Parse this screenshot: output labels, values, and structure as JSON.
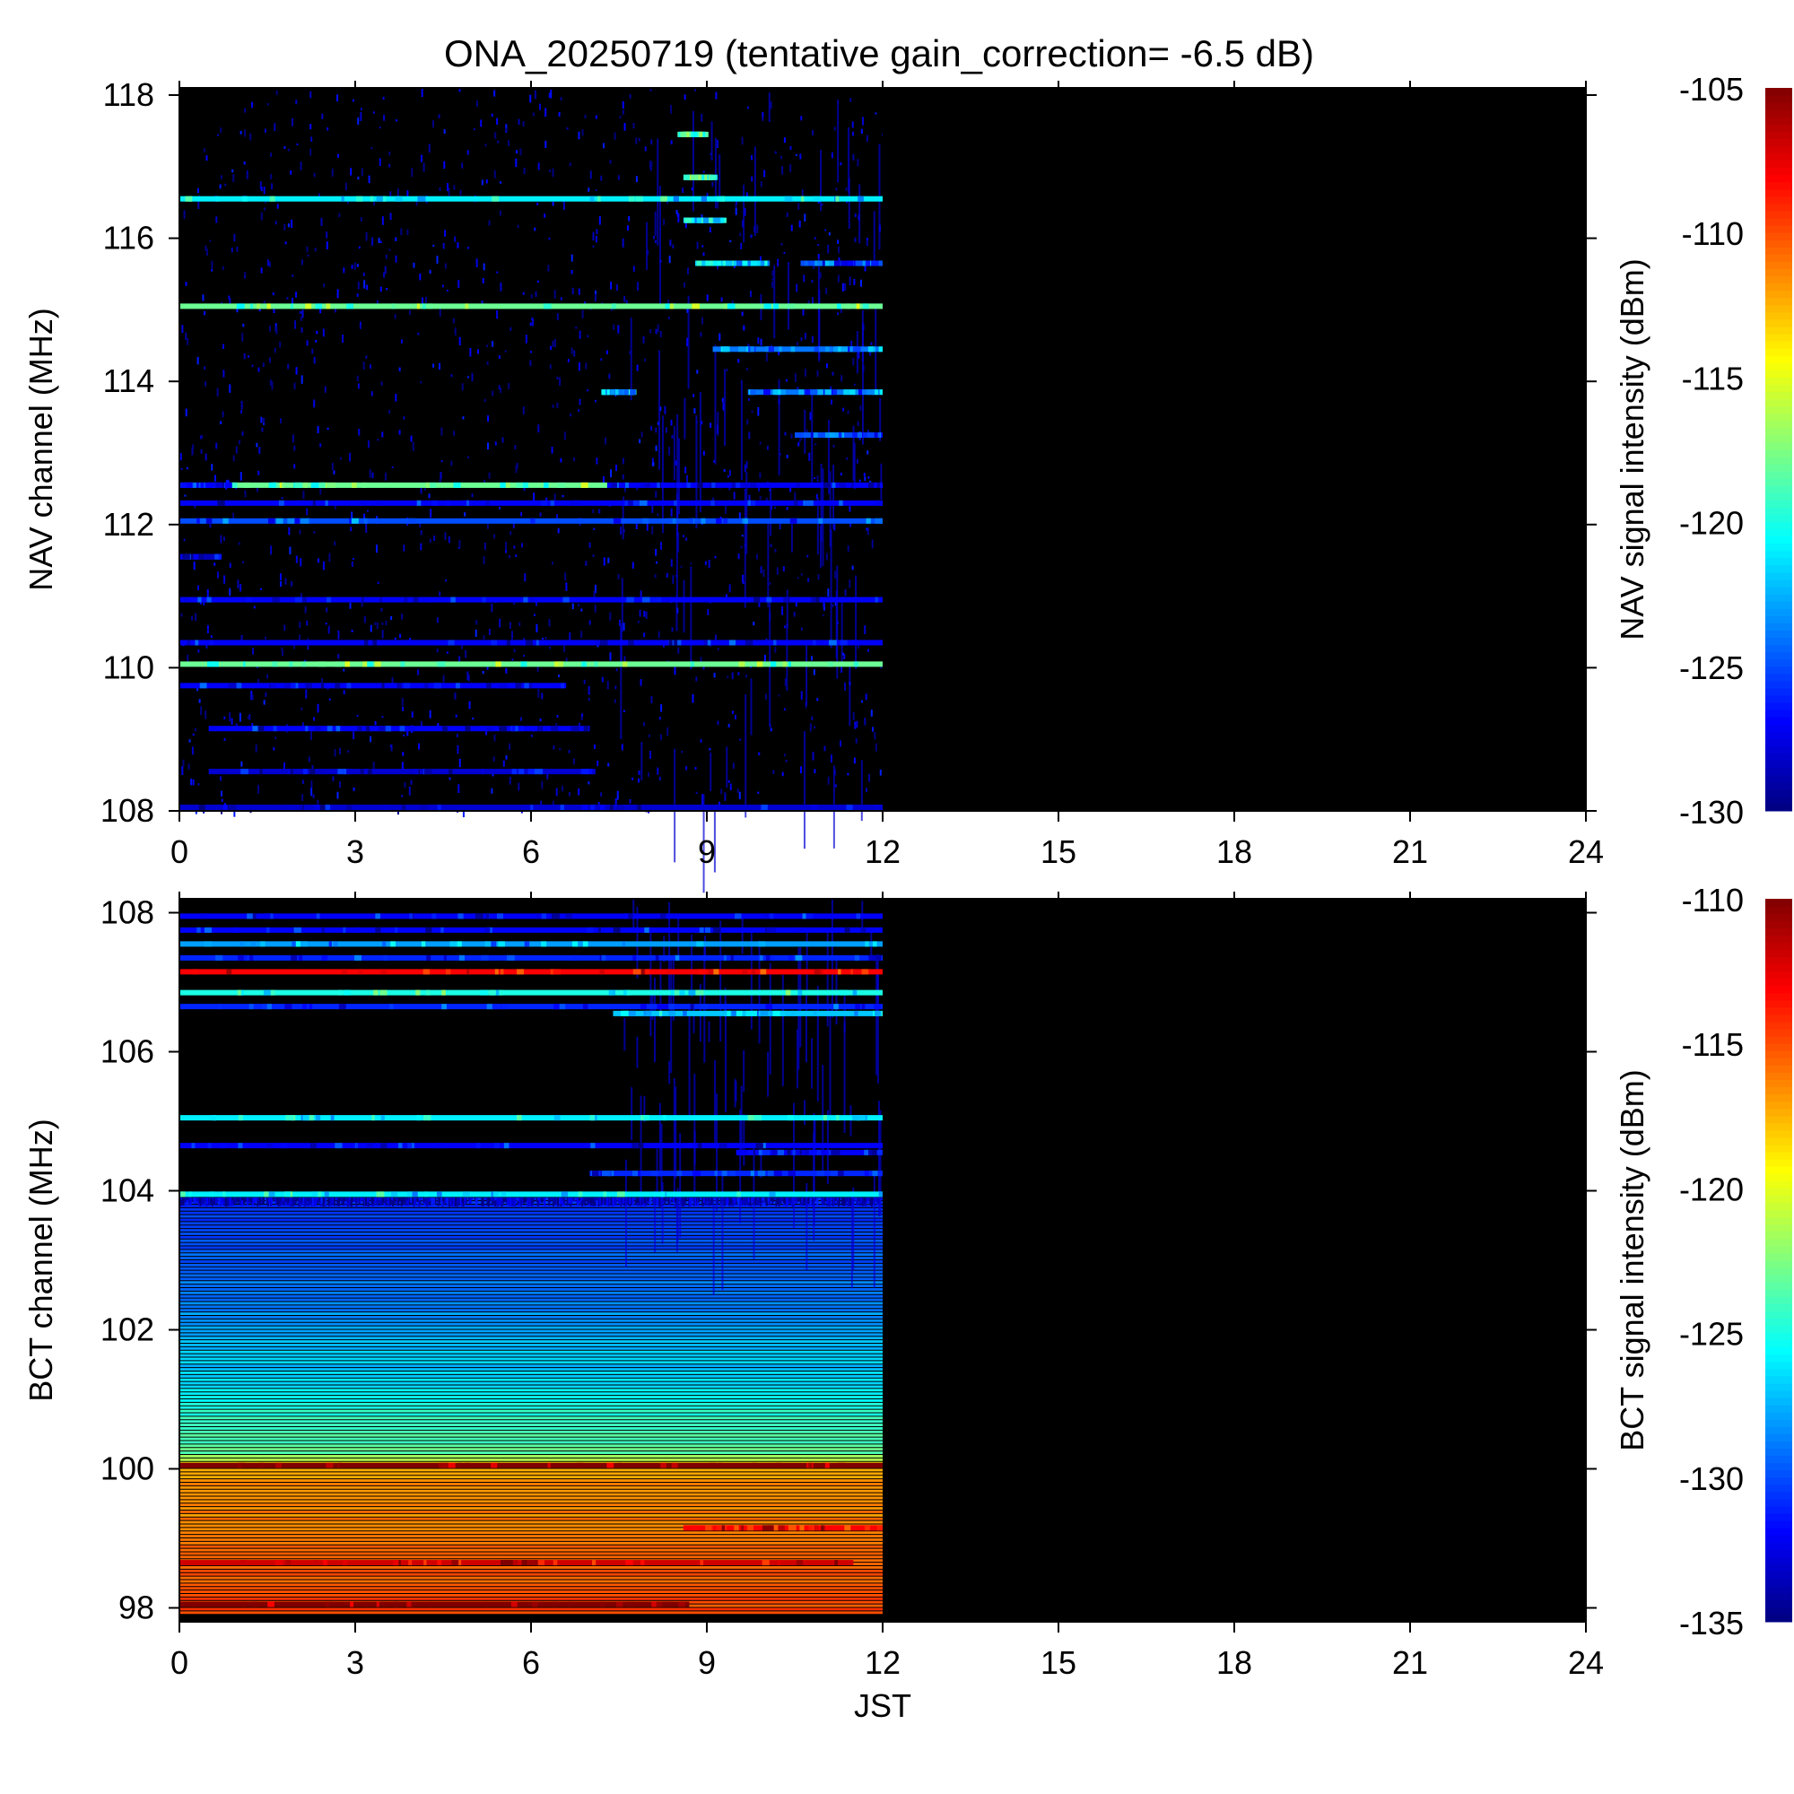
{
  "title": "ONA_20250719 (tentative gain_correction= -6.5 dB)",
  "chart_data": [
    {
      "type": "heatmap",
      "panel": "top",
      "ylabel": "NAV channel (MHz)",
      "colorbar_label": "NAV signal intensity (dBm)",
      "xlim": [
        0,
        24
      ],
      "x_ticks": [
        0,
        3,
        6,
        9,
        12,
        15,
        18,
        21,
        24
      ],
      "ylim": [
        108,
        118.1
      ],
      "y_ticks": [
        108,
        110,
        112,
        114,
        116,
        118
      ],
      "clim": [
        -130,
        -105
      ],
      "colorbar_ticks": [
        -130,
        -125,
        -120,
        -115,
        -110,
        -105
      ],
      "data_end_hour": 12,
      "no_data_color": "#000000",
      "background_level": -131,
      "noise_level": [
        -131,
        -126
      ],
      "lines": [
        {
          "freq": 116.55,
          "x": [
            0,
            12
          ],
          "level": -121
        },
        {
          "freq": 115.05,
          "x": [
            0,
            12
          ],
          "level": -118
        },
        {
          "freq": 112.55,
          "x": [
            0.8,
            7.3
          ],
          "level": -118
        },
        {
          "freq": 112.55,
          "x": [
            0,
            0.8
          ],
          "level": -127
        },
        {
          "freq": 112.55,
          "x": [
            7.3,
            12
          ],
          "level": -127
        },
        {
          "freq": 112.3,
          "x": [
            0,
            12
          ],
          "level": -127
        },
        {
          "freq": 112.05,
          "x": [
            0,
            12
          ],
          "level": -125
        },
        {
          "freq": 111.55,
          "x": [
            0,
            0.7
          ],
          "level": -127
        },
        {
          "freq": 110.95,
          "x": [
            0,
            12
          ],
          "level": -127
        },
        {
          "freq": 110.35,
          "x": [
            0,
            12
          ],
          "level": -127
        },
        {
          "freq": 110.05,
          "x": [
            0,
            12
          ],
          "level": -118
        },
        {
          "freq": 109.75,
          "x": [
            0,
            6.6
          ],
          "level": -127
        },
        {
          "freq": 109.15,
          "x": [
            0.5,
            7.0
          ],
          "level": -127
        },
        {
          "freq": 108.55,
          "x": [
            0.5,
            7.1
          ],
          "level": -128
        },
        {
          "freq": 108.05,
          "x": [
            0,
            12
          ],
          "level": -128
        },
        {
          "freq": 117.45,
          "x": [
            8.5,
            8.9
          ],
          "level": -119
        },
        {
          "freq": 116.85,
          "x": [
            8.6,
            9.1
          ],
          "level": -119
        },
        {
          "freq": 116.25,
          "x": [
            8.6,
            9.2
          ],
          "level": -122
        },
        {
          "freq": 115.65,
          "x": [
            8.8,
            10.0
          ],
          "level": -122
        },
        {
          "freq": 115.65,
          "x": [
            10.6,
            12
          ],
          "level": -125
        },
        {
          "freq": 114.45,
          "x": [
            9.1,
            12
          ],
          "level": -124
        },
        {
          "freq": 113.85,
          "x": [
            7.2,
            7.7
          ],
          "level": -122
        },
        {
          "freq": 113.85,
          "x": [
            9.7,
            12
          ],
          "level": -124
        },
        {
          "freq": 113.25,
          "x": [
            10.5,
            12
          ],
          "level": -125
        }
      ]
    },
    {
      "type": "heatmap",
      "panel": "bottom",
      "xlabel": "JST",
      "ylabel": "BCT channel (MHz)",
      "colorbar_label": "BCT signal intensity (dBm)",
      "xlim": [
        0,
        24
      ],
      "x_ticks": [
        0,
        3,
        6,
        9,
        12,
        15,
        18,
        21,
        24
      ],
      "ylim": [
        97.8,
        108.2
      ],
      "y_ticks": [
        98,
        100,
        102,
        104,
        106,
        108
      ],
      "clim": [
        -135,
        -110
      ],
      "colorbar_ticks": [
        -135,
        -130,
        -125,
        -120,
        -115,
        -110
      ],
      "data_end_hour": 12,
      "no_data_color": "#000000",
      "background_level": -136,
      "noise_level": [
        -136,
        -131
      ],
      "lines": [
        {
          "freq": 107.95,
          "x": [
            0,
            12
          ],
          "level": -132
        },
        {
          "freq": 107.75,
          "x": [
            0,
            12
          ],
          "level": -132
        },
        {
          "freq": 107.55,
          "x": [
            0,
            12
          ],
          "level": -128
        },
        {
          "freq": 107.35,
          "x": [
            0,
            12
          ],
          "level": -131
        },
        {
          "freq": 107.15,
          "x": [
            0,
            12
          ],
          "level": -113
        },
        {
          "freq": 106.85,
          "x": [
            0,
            12
          ],
          "level": -125
        },
        {
          "freq": 106.65,
          "x": [
            0,
            12
          ],
          "level": -131
        },
        {
          "freq": 106.55,
          "x": [
            7.4,
            12
          ],
          "level": -127
        },
        {
          "freq": 105.05,
          "x": [
            0,
            12
          ],
          "level": -126
        },
        {
          "freq": 104.65,
          "x": [
            0,
            12
          ],
          "level": -132
        },
        {
          "freq": 104.55,
          "x": [
            9.5,
            12
          ],
          "level": -132
        },
        {
          "freq": 104.25,
          "x": [
            7.0,
            12
          ],
          "level": -131
        },
        {
          "freq": 103.95,
          "x": [
            0,
            12
          ],
          "level": -126
        },
        {
          "freq": 100.05,
          "x": [
            0,
            12
          ],
          "level": -110
        },
        {
          "freq": 99.15,
          "x": [
            8.6,
            12
          ],
          "level": -113
        },
        {
          "freq": 98.65,
          "x": [
            0,
            11.5
          ],
          "level": -112
        },
        {
          "freq": 98.05,
          "x": [
            0,
            8.7
          ],
          "level": -110
        }
      ],
      "gradient_band": {
        "freq_range": [
          97.9,
          103.9
        ],
        "levels": [
          [
            98.0,
            -115
          ],
          [
            99.9,
            -117
          ],
          [
            100.2,
            -123
          ],
          [
            101.5,
            -127
          ],
          [
            102.5,
            -129
          ],
          [
            103.9,
            -131
          ]
        ]
      }
    }
  ]
}
